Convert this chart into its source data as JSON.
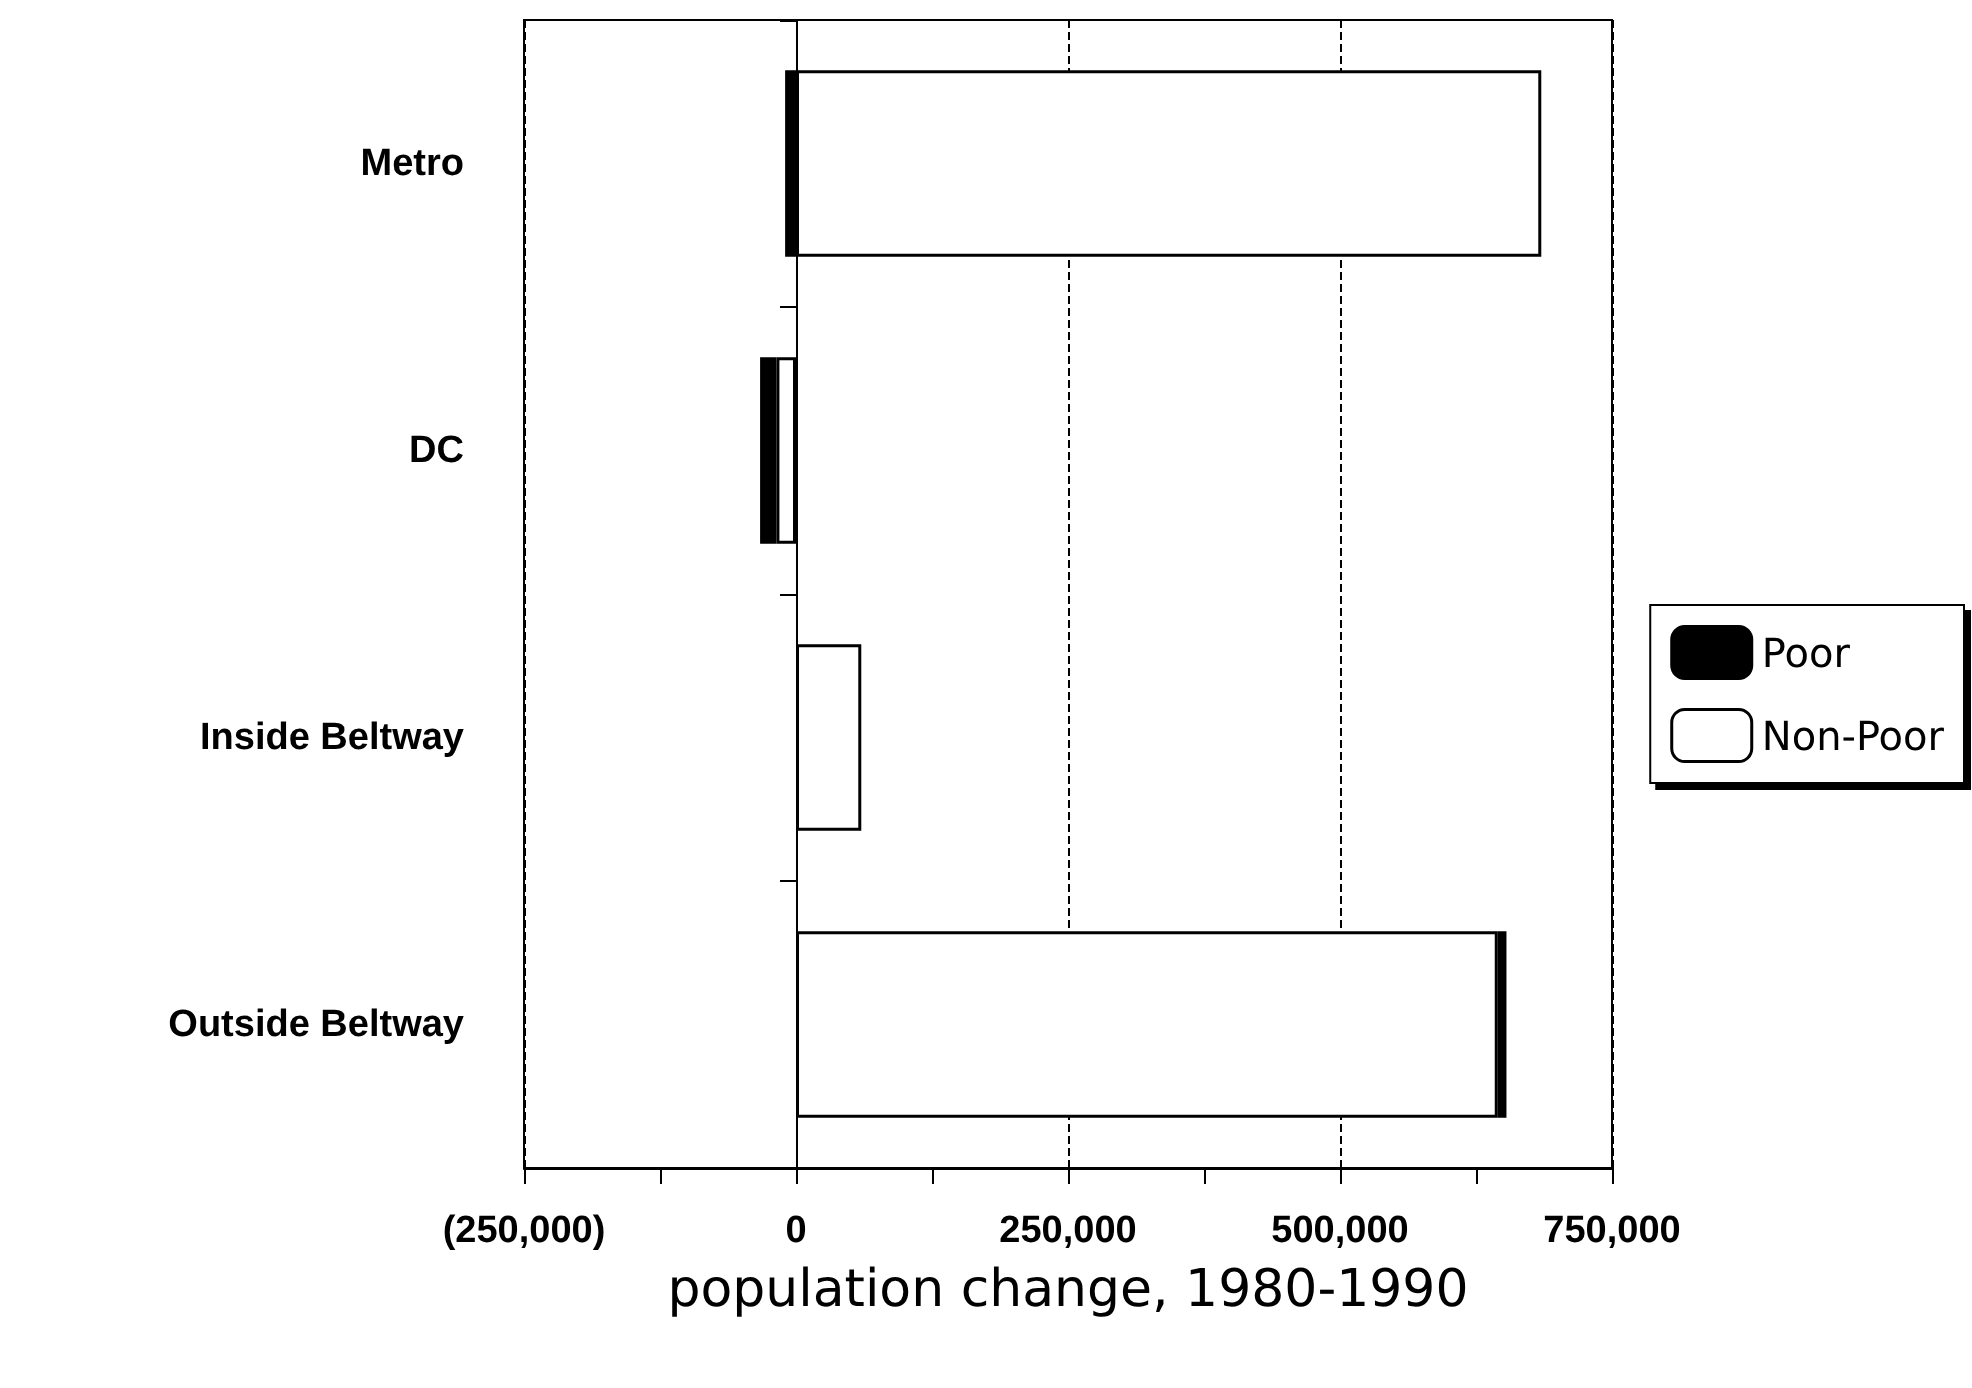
{
  "chart_data": {
    "type": "bar",
    "orientation": "horizontal",
    "stacked": true,
    "xlabel": "population change, 1980-1990",
    "categories": [
      "Metro",
      "DC",
      "Inside Beltway",
      "Outside Beltway"
    ],
    "series": [
      {
        "name": "Non-Poor",
        "color": "#ffffff",
        "values": [
          685000,
          -18000,
          60000,
          645000
        ]
      },
      {
        "name": "Poor",
        "color": "#000000",
        "values": [
          -10000,
          -15000,
          null,
          8000
        ]
      }
    ],
    "xlim": [
      -250000,
      750000
    ],
    "xticks": [
      {
        "value": -250000,
        "label": "(250,000)"
      },
      {
        "value": -125000,
        "label": null
      },
      0,
      {
        "value": 125000,
        "label": null
      },
      {
        "value": 250000,
        "label": "250,000"
      },
      {
        "value": 375000,
        "label": null
      },
      {
        "value": 500000,
        "label": "500,000"
      },
      {
        "value": 625000,
        "label": null
      },
      {
        "value": 750000,
        "label": "750,000"
      }
    ],
    "grid": "x",
    "legend": "right"
  }
}
